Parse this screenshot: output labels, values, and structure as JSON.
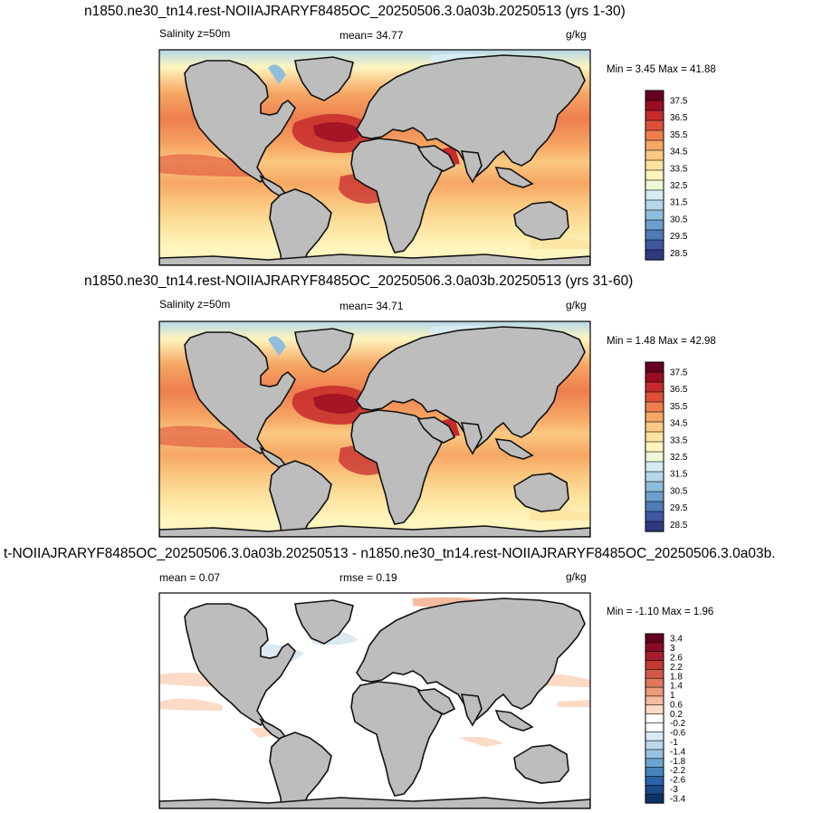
{
  "chart_data": [
    {
      "type": "heatmap",
      "title": "n1850.ne30_tn14.rest-NOIIAJRARYF8485OC_20250506.3.0a03b.20250513 (yrs 1-30)",
      "left_label": "Salinity z=50m",
      "stat_label": "mean=  34.77",
      "units": "g/kg",
      "minmax": "Min =   3.45 Max =  41.88",
      "mean": 34.77,
      "min": 3.45,
      "max": 41.88,
      "colorbar_ticks": [
        "37.5",
        "36.5",
        "35.5",
        "34.5",
        "33.5",
        "32.5",
        "31.5",
        "30.5",
        "29.5",
        "28.5"
      ],
      "colorbar_colors": [
        "#67001f",
        "#9b0d22",
        "#c62a2c",
        "#df5039",
        "#ee7e4e",
        "#f6a764",
        "#fbc981",
        "#fde39f",
        "#fff5be",
        "#f1f8d8",
        "#d7ecf2",
        "#b4d7ea",
        "#8fbedd",
        "#6c9fcb",
        "#4f7cb7",
        "#3d58a0",
        "#2e3a7f"
      ]
    },
    {
      "type": "heatmap",
      "title": "n1850.ne30_tn14.rest-NOIIAJRARYF8485OC_20250506.3.0a03b.20250513 (yrs 31-60)",
      "left_label": "Salinity z=50m",
      "stat_label": "mean=  34.71",
      "units": "g/kg",
      "minmax": "Min =   1.48 Max =  42.98",
      "mean": 34.71,
      "min": 1.48,
      "max": 42.98,
      "colorbar_ticks": [
        "37.5",
        "36.5",
        "35.5",
        "34.5",
        "33.5",
        "32.5",
        "31.5",
        "30.5",
        "29.5",
        "28.5"
      ],
      "colorbar_colors": [
        "#67001f",
        "#9b0d22",
        "#c62a2c",
        "#df5039",
        "#ee7e4e",
        "#f6a764",
        "#fbc981",
        "#fde39f",
        "#fff5be",
        "#f1f8d8",
        "#d7ecf2",
        "#b4d7ea",
        "#8fbedd",
        "#6c9fcb",
        "#4f7cb7",
        "#3d58a0",
        "#2e3a7f"
      ]
    },
    {
      "type": "heatmap",
      "title": "t-NOIIAJRARYF8485OC_20250506.3.0a03b.20250513 - n1850.ne30_tn14.rest-NOIIAJRARYF8485OC_20250506.3.0a03b.",
      "left_label": "mean =   0.07",
      "stat_label": "rmse =   0.19",
      "units": "g/kg",
      "minmax": "Min =  -1.10 Max =   1.96",
      "mean": 0.07,
      "rmse": 0.19,
      "min": -1.1,
      "max": 1.96,
      "colorbar_ticks": [
        "3.4",
        "3",
        "2.6",
        "2.2",
        "1.8",
        "1.4",
        "1",
        "0.6",
        "0.2",
        "-0.2",
        "-0.6",
        "-1",
        "-1.4",
        "-1.8",
        "-2.2",
        "-2.6",
        "-3",
        "-3.4"
      ],
      "colorbar_colors": [
        "#67001f",
        "#8a0b25",
        "#a81d2b",
        "#c03a36",
        "#d25847",
        "#e0775c",
        "#ec9a7a",
        "#f5bba0",
        "#fbdac6",
        "#ffffff",
        "#ffffff",
        "#dbe9f3",
        "#bcd7ea",
        "#97c1df",
        "#6aa4cf",
        "#4584bd",
        "#2a64a6",
        "#194a88",
        "#0b3466"
      ]
    }
  ]
}
